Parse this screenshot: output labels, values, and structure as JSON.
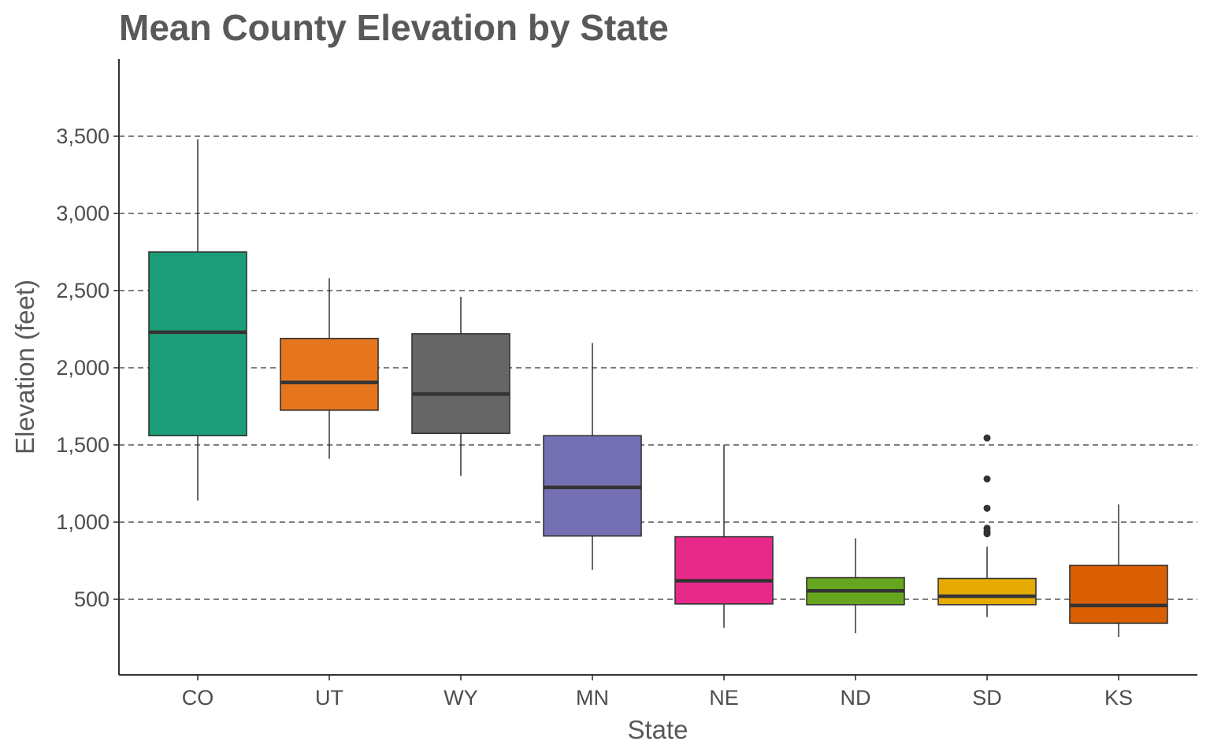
{
  "chart_data": {
    "type": "boxplot",
    "title": "Mean County Elevation by State",
    "xlabel": "State",
    "ylabel": "Elevation (feet)",
    "ylim": [
      0,
      4000
    ],
    "yticks": [
      500,
      1000,
      1500,
      2000,
      2500,
      3000,
      3500
    ],
    "ytick_labels": [
      "500",
      "1,000",
      "1,500",
      "2,000",
      "2,500",
      "3,000",
      "3,500"
    ],
    "grid": "horizontal-dashed",
    "categories": [
      "CO",
      "UT",
      "WY",
      "MN",
      "NE",
      "ND",
      "SD",
      "KS"
    ],
    "boxes": [
      {
        "state": "CO",
        "whisker_low": 1140,
        "q1": 1560,
        "median": 2230,
        "q3": 2750,
        "whisker_high": 3480,
        "color": "#1b9e77",
        "outliers": []
      },
      {
        "state": "UT",
        "whisker_low": 1410,
        "q1": 1725,
        "median": 1905,
        "q3": 2190,
        "whisker_high": 2580,
        "color": "#e6761e",
        "outliers": []
      },
      {
        "state": "WY",
        "whisker_low": 1300,
        "q1": 1575,
        "median": 1830,
        "q3": 2220,
        "whisker_high": 2460,
        "color": "#666666",
        "outliers": []
      },
      {
        "state": "MN",
        "whisker_low": 690,
        "q1": 910,
        "median": 1225,
        "q3": 1560,
        "whisker_high": 2160,
        "color": "#7570b3",
        "outliers": []
      },
      {
        "state": "NE",
        "whisker_low": 315,
        "q1": 470,
        "median": 620,
        "q3": 905,
        "whisker_high": 1500,
        "color": "#e7298a",
        "outliers": []
      },
      {
        "state": "ND",
        "whisker_low": 280,
        "q1": 465,
        "median": 555,
        "q3": 640,
        "whisker_high": 895,
        "color": "#66a61e",
        "outliers": []
      },
      {
        "state": "SD",
        "whisker_low": 385,
        "q1": 465,
        "median": 520,
        "q3": 635,
        "whisker_high": 840,
        "color": "#e6ab02",
        "outliers": [
          925,
          940,
          960,
          1090,
          1280,
          1545
        ]
      },
      {
        "state": "KS",
        "whisker_low": 255,
        "q1": 345,
        "median": 460,
        "q3": 720,
        "whisker_high": 1115,
        "color": "#d95f02",
        "outliers": []
      }
    ]
  }
}
